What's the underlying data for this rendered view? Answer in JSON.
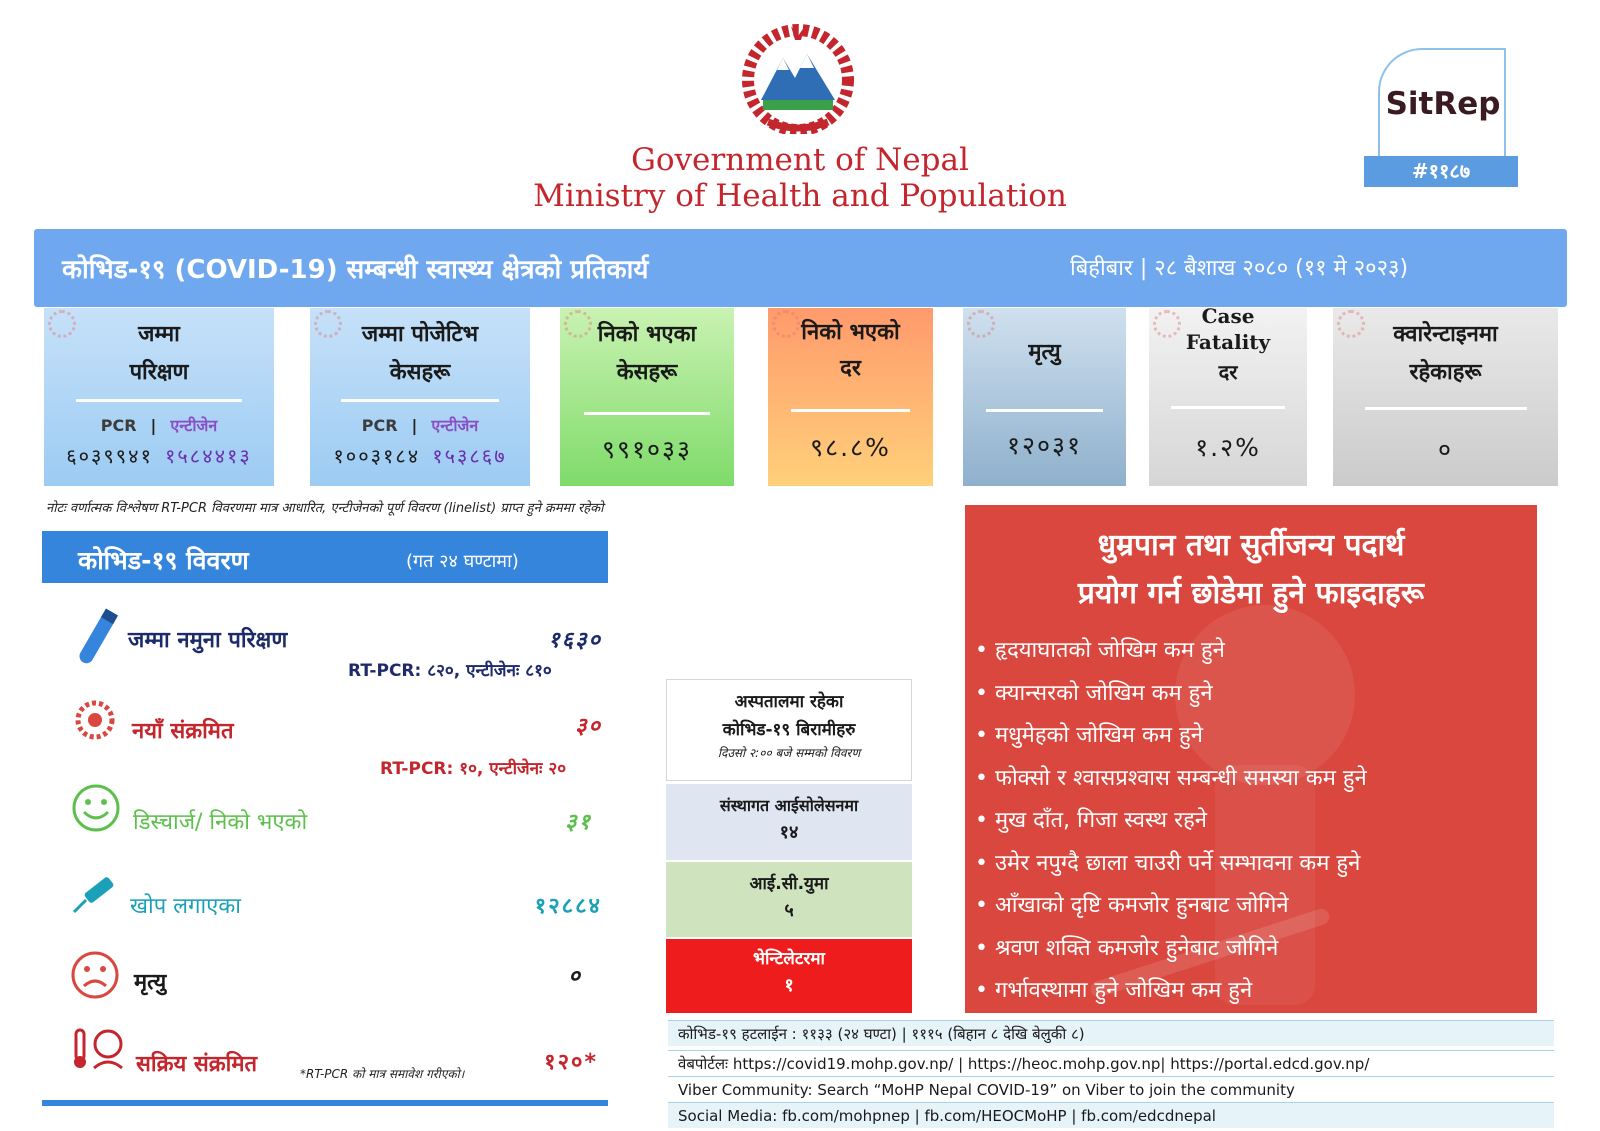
{
  "header": {
    "gov_line1": "Government of Nepal",
    "gov_line2": "Ministry of Health and Population",
    "sitrep_label": "SitRep",
    "sitrep_number": "#११८७"
  },
  "banner": {
    "title": "कोभिड-१९ (COVID-19) सम्बन्धी स्वास्थ्य क्षेत्रको प्रतिकार्य",
    "date": "बिहीबार | २८ बैशाख २०८० (११ मे २०२३)"
  },
  "cards": {
    "tests": {
      "title1": "जम्मा",
      "title2": "परिक्षण",
      "label_pcr": "PCR",
      "label_sep": "|",
      "label_antigen": "एन्टीजेन",
      "value_pcr": "६०३९९४१",
      "value_antigen": "१५८४४१३"
    },
    "positive": {
      "title1": "जम्मा पोजेटिभ",
      "title2": "केसहरू",
      "label_pcr": "PCR",
      "label_sep": "|",
      "label_antigen": "एन्टीजेन",
      "value_pcr": "१००३१८४",
      "value_antigen": "१५३८६७"
    },
    "recovered": {
      "title1": "निको भएका",
      "title2": "केसहरू",
      "value": "९९१०३३"
    },
    "recovery_rate": {
      "title1": "निको भएको",
      "title2": "दर",
      "value": "९८.८%"
    },
    "deaths": {
      "title1": "मृत्यु",
      "value": "१२०३१"
    },
    "cfr": {
      "title1": "Case",
      "title2": "Fatality",
      "title3": "दर",
      "value": "१.२%"
    },
    "quarantine": {
      "title1": "क्वारेन्टाइनमा",
      "title2": "रहेकाहरू",
      "value": "०"
    }
  },
  "note": "नोटः वर्णात्मक विश्लेषण RT-PCR विवरणमा मात्र आधारित, एन्टीजेनको पूर्ण विवरण (linelist) प्राप्त हुने क्रममा रहेको",
  "left_panel": {
    "title": "कोभिड-१९ विवरण",
    "subtitle": "(गत २४ घण्टामा)",
    "tests_label": "जम्मा नमुना परिक्षण",
    "tests_value": "१६३०",
    "tests_sub": "RT-PCR: ८२०, एन्टीजेनः ८१०",
    "new_label": "नयाँ संक्रमित",
    "new_value": "३०",
    "new_sub": "RT-PCR: १०, एन्टीजेनः २०",
    "discharge_label": "डिस्चार्ज/ निको भएको",
    "discharge_value": "३१",
    "vaccine_label": "खोप लगाएका",
    "vaccine_value": "१२८८४",
    "death_label": "मृत्यु",
    "death_value": "०",
    "active_label": "सक्रिय संक्रमित",
    "active_note": "*RT-PCR को मात्र समावेश गरीएको।",
    "active_value": "१२०*"
  },
  "hospital": {
    "title1": "अस्पतालमा रहेका",
    "title2": "कोभिड-१९ बिरामीहरु",
    "note": "दिउसो २:०० बजे सम्मको विवरण",
    "isolation_label": "संस्थागत आईसोलेसनमा",
    "isolation_value": "१४",
    "icu_label": "आई.सी.युमा",
    "icu_value": "५",
    "ventilator_label": "भेन्टिलेटरमा",
    "ventilator_value": "१"
  },
  "smoking": {
    "title1": "धुम्रपान तथा सुर्तीजन्य पदार्थ",
    "title2": "प्रयोग गर्न छोडेमा हुने फाइदाहरू",
    "items": [
      "हृदयाघातको जोखिम कम हुने",
      "क्यान्सरको जोखिम कम हुने",
      "मधुमेहको जोखिम कम हुने",
      "फोक्सो र श्वासप्रश्वास सम्बन्धी समस्या कम हुने",
      "मुख दाँत, गिजा स्वस्थ रहने",
      "उमेर नपुग्दै छाला चाउरी पर्ने सम्भावना कम हुने",
      "आँखाको दृष्टि कमजोर हुनबाट जोगिने",
      "श्रवण शक्ति कमजोर हुनेबाट जोगिने",
      "गर्भावस्थामा हुने जोखिम कम हुने"
    ]
  },
  "footer": {
    "hotline": "कोभिड-१९ हटलाईन : ११३३ (२४ घण्टा) | १११५ (बिहान ८ देखि बेलुकी ८)",
    "portal": "वेबपोर्टलः https://covid19.mohp.gov.np/ | https://heoc.mohp.gov.np| https://portal.edcd.gov.np/",
    "viber": "Viber Community: Search “MoHP Nepal COVID-19” on Viber to join the community",
    "social": "Social Media: fb.com/mohpnep | fb.com/HEOCMoHP | fb.com/edcdnepal"
  },
  "colors": {
    "banner": "#6fa8ef",
    "gov_red": "#c3262d",
    "panel_blue": "#3585dc",
    "smoking_red": "#d9473e",
    "card_tests": "#a9d0f5",
    "card_recovered": "#8ee07a",
    "card_rate": "#ffb27a",
    "card_deaths": "#a4bfd6",
    "card_cfr": "#dedede",
    "card_quarantine": "#d2d2d2"
  },
  "icons": [
    "nepal-emblem-icon",
    "test-tube-icon",
    "virus-icon",
    "smiley-icon",
    "syringe-icon",
    "sad-face-icon",
    "sick-person-icon"
  ]
}
